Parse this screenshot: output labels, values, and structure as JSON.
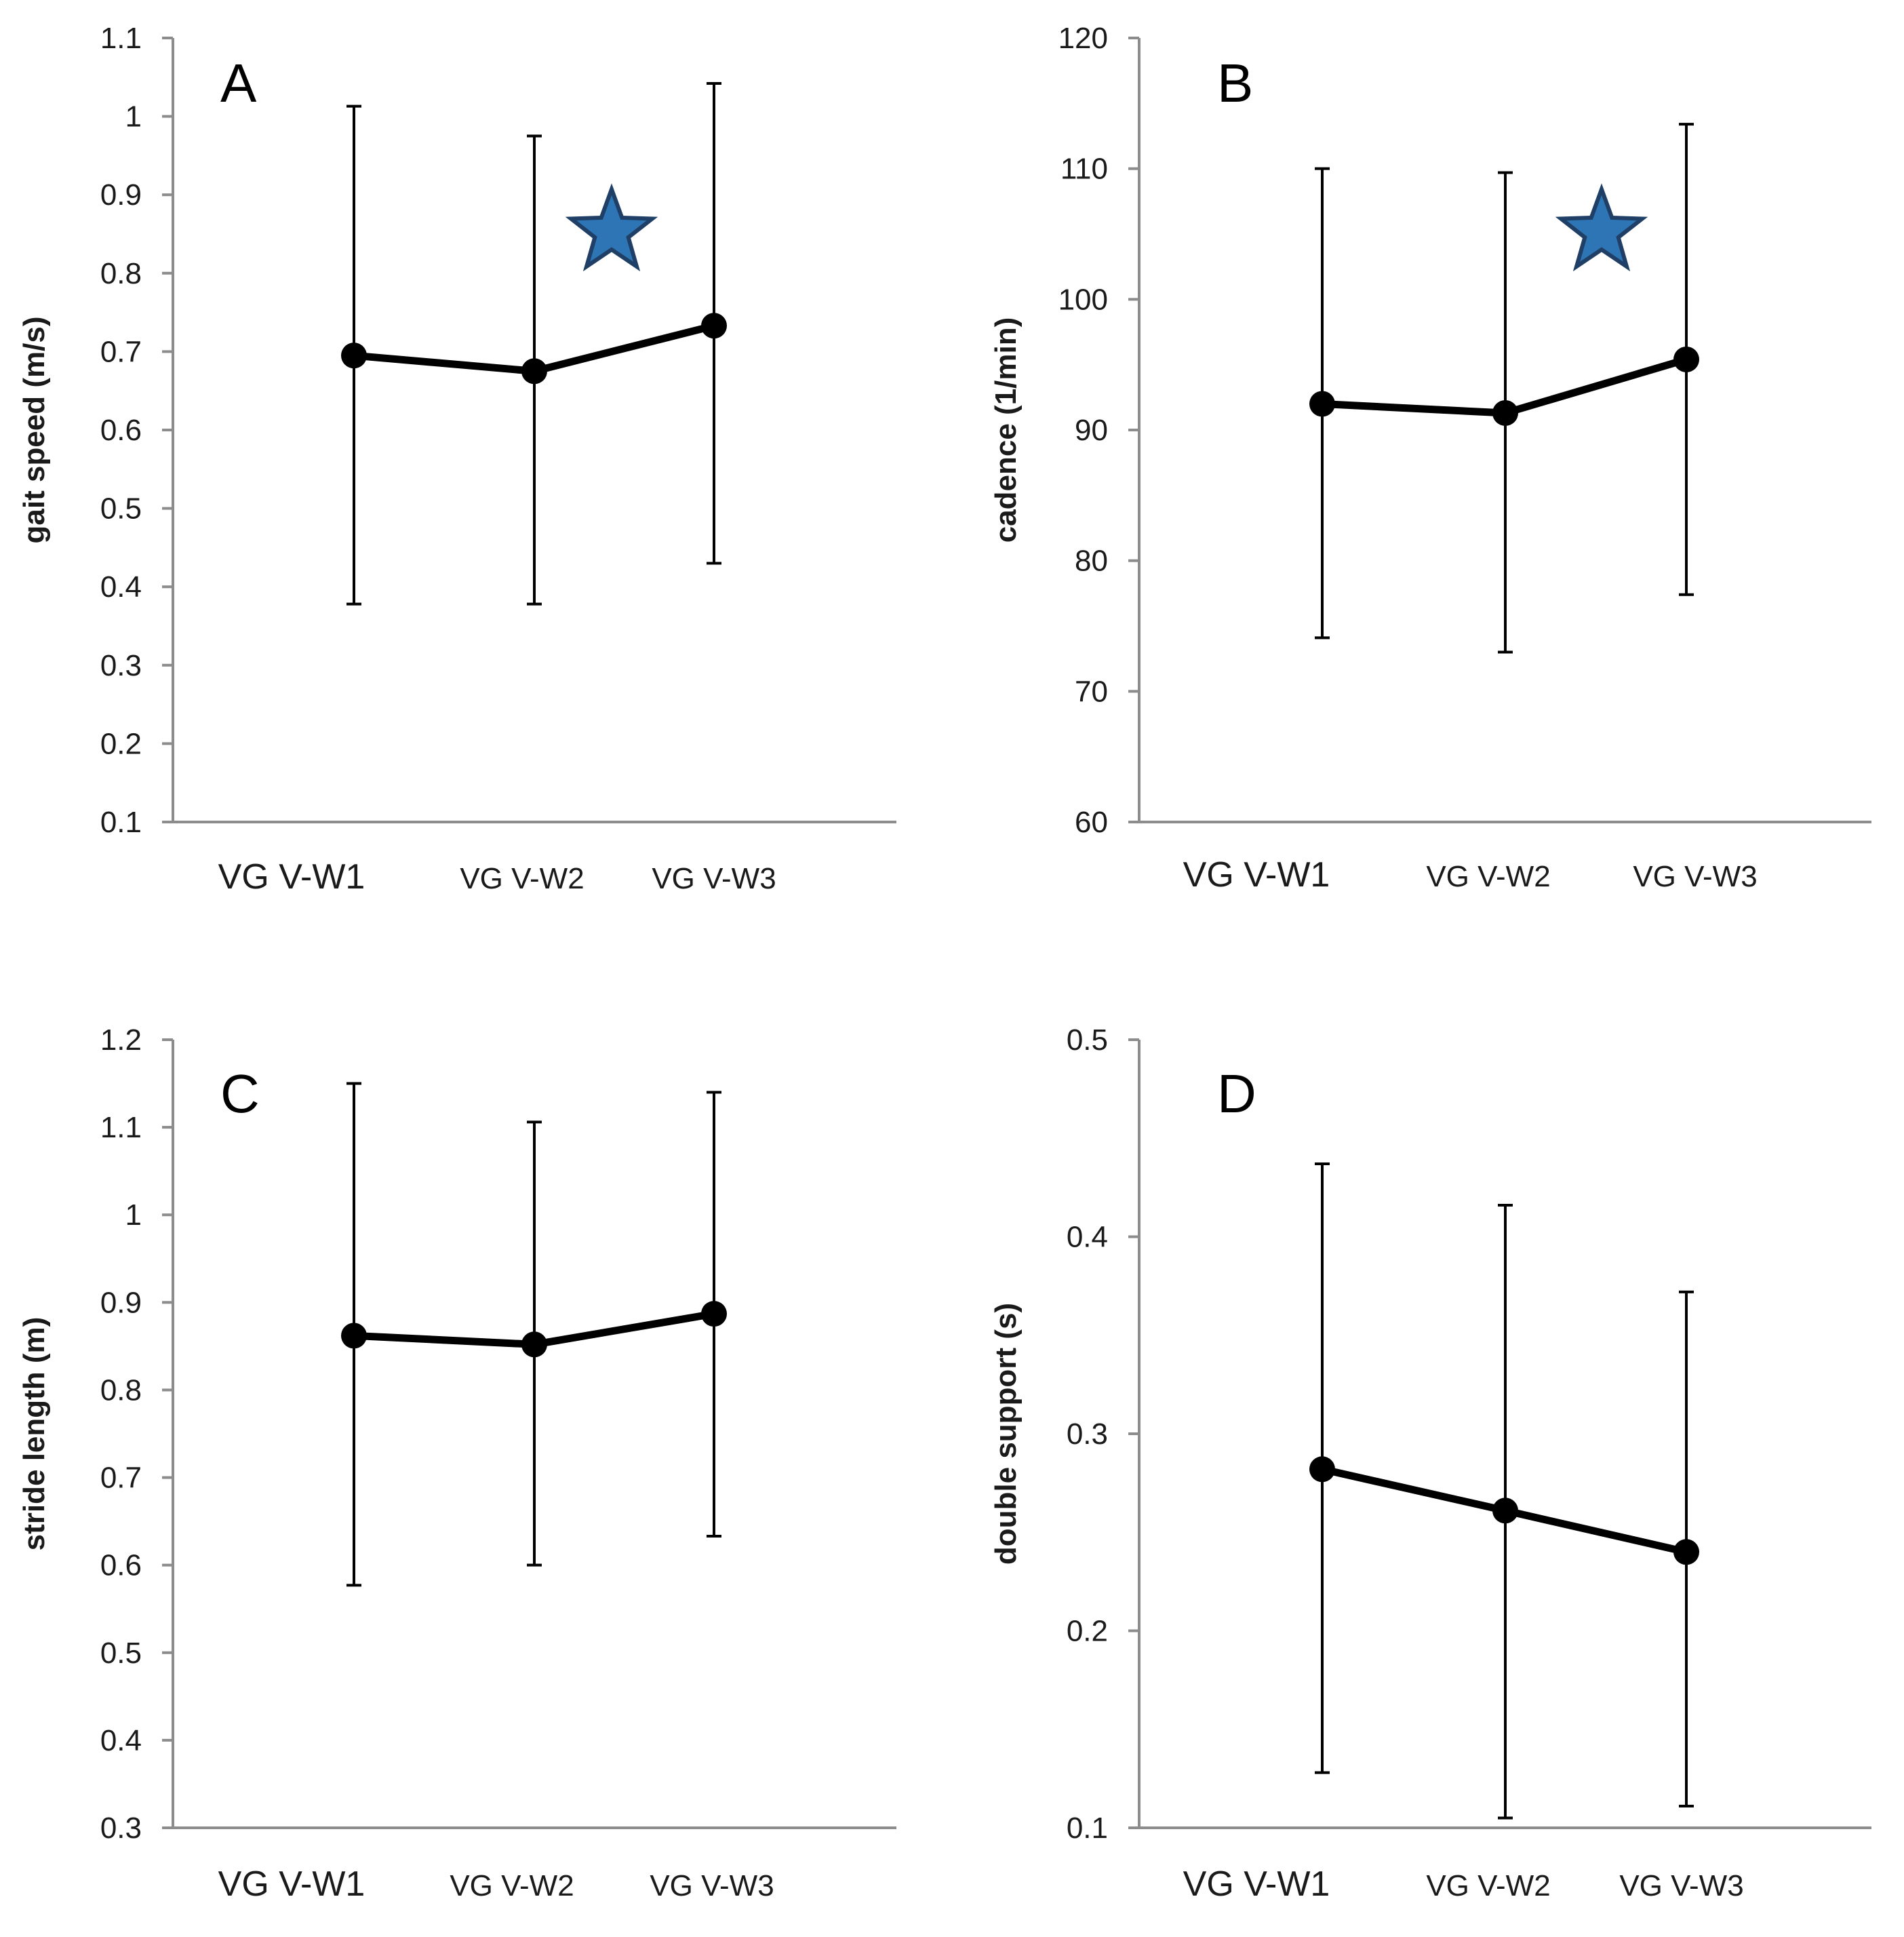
{
  "colors": {
    "series": "#000000",
    "axis": "#8c8c8c",
    "star_fill": "#2e75b6",
    "star_stroke": "#1f3f66"
  },
  "chart_data": [
    {
      "panel": "A",
      "type": "line",
      "categories": [
        "VG  V-W1",
        "VG V-W2",
        "VG V-W3"
      ],
      "ylabel": "gait speed (m/s)",
      "ylim": [
        0.1,
        1.1
      ],
      "yticks": [
        "0.1",
        "0.2",
        "0.3",
        "0.4",
        "0.5",
        "0.6",
        "0.7",
        "0.8",
        "0.9",
        "1",
        "1.1"
      ],
      "series": [
        {
          "values": [
            0.695,
            0.675,
            0.733
          ],
          "err_low": [
            0.378,
            0.378,
            0.43
          ],
          "err_high": [
            1.013,
            0.975,
            1.042
          ]
        }
      ],
      "significance_marker": {
        "symbol": "star",
        "between": [
          "VG V-W2",
          "VG V-W3"
        ]
      },
      "grid": false
    },
    {
      "panel": "B",
      "type": "line",
      "categories": [
        "VG  V-W1",
        "VG V-W2",
        "VG V-W3"
      ],
      "ylabel": "cadence (1/min)",
      "ylim": [
        60,
        120
      ],
      "yticks": [
        "60",
        "70",
        "80",
        "90",
        "100",
        "110",
        "120"
      ],
      "series": [
        {
          "values": [
            92,
            91.3,
            95.4
          ],
          "err_low": [
            74.1,
            73,
            77.4
          ],
          "err_high": [
            110,
            109.7,
            113.4
          ]
        }
      ],
      "significance_marker": {
        "symbol": "star",
        "between": [
          "VG V-W2",
          "VG V-W3"
        ]
      },
      "grid": false
    },
    {
      "panel": "C",
      "type": "line",
      "categories": [
        "VG  V-W1",
        "VG V-W2",
        "VG V-W3"
      ],
      "ylabel": "stride length (m)",
      "ylim": [
        0.3,
        1.2
      ],
      "yticks": [
        "0.3",
        "0.4",
        "0.5",
        "0.6",
        "0.7",
        "0.8",
        "0.9",
        "1",
        "1.1",
        "1.2"
      ],
      "series": [
        {
          "values": [
            0.862,
            0.852,
            0.887
          ],
          "err_low": [
            0.577,
            0.6,
            0.633
          ],
          "err_high": [
            1.15,
            1.106,
            1.14
          ]
        }
      ],
      "grid": false
    },
    {
      "panel": "D",
      "type": "line",
      "categories": [
        "VG  V-W1",
        "VG V-W2",
        "VG V-W3"
      ],
      "ylabel": "double support (s)",
      "ylim": [
        0.1,
        0.5
      ],
      "yticks": [
        "0.1",
        "0.2",
        "0.3",
        "0.4",
        "0.5"
      ],
      "series": [
        {
          "values": [
            0.282,
            0.261,
            0.24
          ],
          "err_low": [
            0.128,
            0.105,
            0.111
          ],
          "err_high": [
            0.437,
            0.416,
            0.372
          ]
        }
      ],
      "grid": false
    }
  ]
}
